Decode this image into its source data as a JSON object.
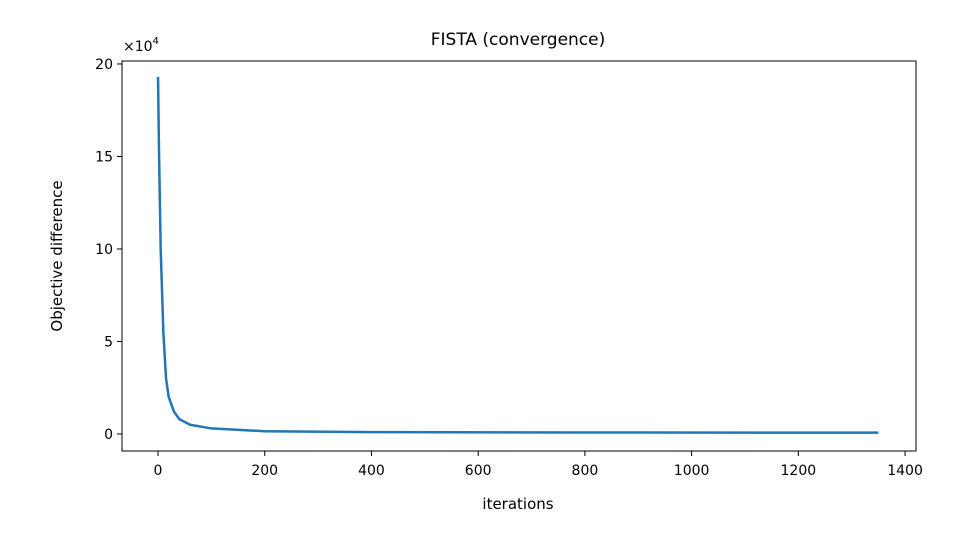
{
  "chart_data": {
    "type": "line",
    "title": "FISTA (convergence)",
    "x_label": "iterations",
    "y_label": "Objective difference",
    "y_scale_label": {
      "base": "×10",
      "exponent": "4"
    },
    "x": [
      0,
      2,
      5,
      10,
      15,
      20,
      30,
      40,
      60,
      100,
      200,
      400,
      800,
      1350
    ],
    "series": [
      {
        "name": "FISTA",
        "color": "#1f77b4",
        "values": [
          19.3,
          15,
          10,
          5.5,
          3.0,
          2.0,
          1.2,
          0.8,
          0.5,
          0.3,
          0.15,
          0.1,
          0.08,
          0.07
        ]
      }
    ],
    "xlim": [
      -67.5,
      1420.5
    ],
    "ylim": [
      -0.92,
      20.16
    ],
    "xticks": [
      0,
      200,
      400,
      600,
      800,
      1000,
      1200,
      1400
    ],
    "yticks": [
      0,
      5,
      10,
      15,
      20
    ]
  }
}
